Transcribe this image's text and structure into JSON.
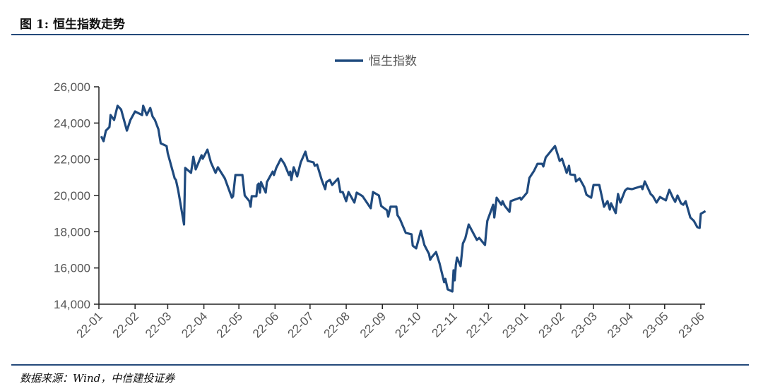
{
  "header": {
    "figure_title": "图 1: 恒生指数走势"
  },
  "footer": {
    "source": "数据来源：Wind，中信建投证券"
  },
  "colors": {
    "series": "#1f4a7e",
    "rule": "#24497a",
    "axis": "#222222"
  },
  "chart_data": {
    "type": "line",
    "title": "",
    "xlabel": "",
    "ylabel": "",
    "ylim": [
      14000,
      26000
    ],
    "yticks": [
      14000,
      16000,
      18000,
      20000,
      22000,
      24000,
      26000
    ],
    "ytick_labels": [
      "14,000",
      "16,000",
      "18,000",
      "20,000",
      "22,000",
      "24,000",
      "26,000"
    ],
    "xlim": [
      "2022-01-01",
      "2023-06-05"
    ],
    "xticks": [
      "2022-01-01",
      "2022-02-01",
      "2022-03-01",
      "2022-04-01",
      "2022-05-01",
      "2022-06-01",
      "2022-07-01",
      "2022-08-01",
      "2022-09-01",
      "2022-10-01",
      "2022-11-01",
      "2022-12-01",
      "2023-01-01",
      "2023-02-01",
      "2023-03-01",
      "2023-04-01",
      "2023-05-01",
      "2023-06-01"
    ],
    "xtick_labels": [
      "22-01",
      "22-02",
      "22-03",
      "22-04",
      "22-05",
      "22-06",
      "22-07",
      "22-08",
      "22-09",
      "22-10",
      "22-11",
      "22-12",
      "23-01",
      "23-02",
      "23-03",
      "23-04",
      "23-05",
      "23-06"
    ],
    "grid": false,
    "legend": {
      "placement": "top-center",
      "entries": [
        "恒生指数"
      ]
    },
    "series": [
      {
        "name": "恒生指数",
        "points": [
          [
            "2022-01-03",
            23270
          ],
          [
            "2022-01-05",
            23000
          ],
          [
            "2022-01-07",
            23580
          ],
          [
            "2022-01-10",
            23780
          ],
          [
            "2022-01-11",
            24440
          ],
          [
            "2022-01-14",
            24170
          ],
          [
            "2022-01-17",
            24950
          ],
          [
            "2022-01-20",
            24750
          ],
          [
            "2022-01-25",
            23580
          ],
          [
            "2022-01-28",
            24170
          ],
          [
            "2022-02-01",
            24640
          ],
          [
            "2022-02-07",
            24440
          ],
          [
            "2022-02-08",
            24950
          ],
          [
            "2022-02-11",
            24440
          ],
          [
            "2022-02-14",
            24830
          ],
          [
            "2022-02-16",
            24360
          ],
          [
            "2022-02-18",
            24170
          ],
          [
            "2022-02-21",
            23660
          ],
          [
            "2022-02-23",
            22880
          ],
          [
            "2022-02-28",
            22730
          ],
          [
            "2022-03-01",
            22340
          ],
          [
            "2022-03-07",
            20940
          ],
          [
            "2022-03-08",
            20860
          ],
          [
            "2022-03-10",
            20270
          ],
          [
            "2022-03-15",
            18400
          ],
          [
            "2022-03-16",
            21520
          ],
          [
            "2022-03-21",
            21250
          ],
          [
            "2022-03-23",
            22140
          ],
          [
            "2022-03-25",
            21440
          ],
          [
            "2022-03-30",
            22220
          ],
          [
            "2022-03-31",
            22030
          ],
          [
            "2022-04-04",
            22530
          ],
          [
            "2022-04-07",
            21830
          ],
          [
            "2022-04-11",
            21250
          ],
          [
            "2022-04-13",
            21560
          ],
          [
            "2022-04-19",
            20940
          ],
          [
            "2022-04-25",
            19880
          ],
          [
            "2022-04-26",
            19960
          ],
          [
            "2022-04-28",
            21130
          ],
          [
            "2022-05-04",
            21130
          ],
          [
            "2022-05-06",
            20000
          ],
          [
            "2022-05-10",
            19690
          ],
          [
            "2022-05-11",
            19380
          ],
          [
            "2022-05-12",
            19960
          ],
          [
            "2022-05-16",
            19960
          ],
          [
            "2022-05-17",
            20580
          ],
          [
            "2022-05-18",
            20660
          ],
          [
            "2022-05-19",
            20160
          ],
          [
            "2022-05-20",
            20740
          ],
          [
            "2022-05-24",
            20160
          ],
          [
            "2022-05-25",
            20740
          ],
          [
            "2022-05-30",
            21320
          ],
          [
            "2022-05-31",
            21130
          ],
          [
            "2022-06-02",
            21520
          ],
          [
            "2022-06-06",
            22030
          ],
          [
            "2022-06-09",
            21750
          ],
          [
            "2022-06-13",
            21130
          ],
          [
            "2022-06-14",
            21320
          ],
          [
            "2022-06-15",
            20860
          ],
          [
            "2022-06-17",
            21560
          ],
          [
            "2022-06-20",
            21050
          ],
          [
            "2022-06-23",
            21830
          ],
          [
            "2022-06-27",
            22420
          ],
          [
            "2022-06-29",
            21910
          ],
          [
            "2022-07-04",
            21830
          ],
          [
            "2022-07-05",
            21640
          ],
          [
            "2022-07-07",
            21710
          ],
          [
            "2022-07-11",
            20860
          ],
          [
            "2022-07-14",
            20350
          ],
          [
            "2022-07-15",
            20740
          ],
          [
            "2022-07-18",
            20860
          ],
          [
            "2022-07-20",
            20580
          ],
          [
            "2022-07-25",
            20940
          ],
          [
            "2022-07-27",
            20190
          ],
          [
            "2022-07-29",
            20190
          ],
          [
            "2022-08-01",
            19690
          ],
          [
            "2022-08-03",
            20190
          ],
          [
            "2022-08-08",
            19610
          ],
          [
            "2022-08-10",
            20160
          ],
          [
            "2022-08-15",
            19960
          ],
          [
            "2022-08-17",
            19770
          ],
          [
            "2022-08-22",
            19300
          ],
          [
            "2022-08-24",
            20190
          ],
          [
            "2022-08-29",
            20000
          ],
          [
            "2022-08-31",
            19420
          ],
          [
            "2022-09-05",
            19180
          ],
          [
            "2022-09-06",
            18830
          ],
          [
            "2022-09-08",
            19380
          ],
          [
            "2022-09-13",
            19380
          ],
          [
            "2022-09-14",
            18910
          ],
          [
            "2022-09-16",
            18710
          ],
          [
            "2022-09-21",
            17940
          ],
          [
            "2022-09-26",
            17860
          ],
          [
            "2022-09-27",
            17230
          ],
          [
            "2022-09-30",
            17080
          ],
          [
            "2022-10-04",
            18050
          ],
          [
            "2022-10-07",
            17270
          ],
          [
            "2022-10-11",
            16770
          ],
          [
            "2022-10-12",
            16450
          ],
          [
            "2022-10-13",
            16570
          ],
          [
            "2022-10-17",
            16880
          ],
          [
            "2022-10-20",
            16260
          ],
          [
            "2022-10-24",
            15210
          ],
          [
            "2022-10-25",
            15400
          ],
          [
            "2022-10-27",
            14820
          ],
          [
            "2022-10-31",
            14700
          ],
          [
            "2022-11-01",
            15870
          ],
          [
            "2022-11-02",
            15320
          ],
          [
            "2022-11-03",
            16180
          ],
          [
            "2022-11-04",
            16570
          ],
          [
            "2022-11-07",
            16100
          ],
          [
            "2022-11-09",
            17350
          ],
          [
            "2022-11-11",
            17620
          ],
          [
            "2022-11-14",
            18400
          ],
          [
            "2022-11-21",
            17550
          ],
          [
            "2022-11-23",
            17660
          ],
          [
            "2022-11-28",
            17270
          ],
          [
            "2022-11-29",
            18010
          ],
          [
            "2022-11-30",
            18600
          ],
          [
            "2022-12-05",
            19490
          ],
          [
            "2022-12-06",
            18790
          ],
          [
            "2022-12-08",
            19880
          ],
          [
            "2022-12-12",
            19490
          ],
          [
            "2022-12-13",
            19690
          ],
          [
            "2022-12-15",
            19420
          ],
          [
            "2022-12-19",
            19100
          ],
          [
            "2022-12-20",
            19690
          ],
          [
            "2022-12-28",
            19880
          ],
          [
            "2022-12-29",
            19770
          ],
          [
            "2023-01-03",
            20160
          ],
          [
            "2023-01-05",
            20970
          ],
          [
            "2023-01-09",
            21360
          ],
          [
            "2023-01-12",
            21750
          ],
          [
            "2023-01-16",
            21750
          ],
          [
            "2023-01-17",
            21600
          ],
          [
            "2023-01-19",
            22100
          ],
          [
            "2023-01-27",
            22730
          ],
          [
            "2023-01-31",
            21910
          ],
          [
            "2023-02-02",
            22030
          ],
          [
            "2023-02-06",
            21250
          ],
          [
            "2023-02-08",
            21640
          ],
          [
            "2023-02-09",
            21170
          ],
          [
            "2023-02-13",
            21130
          ],
          [
            "2023-02-14",
            20780
          ],
          [
            "2023-02-17",
            20940
          ],
          [
            "2023-02-21",
            20470
          ],
          [
            "2023-02-23",
            20040
          ],
          [
            "2023-02-27",
            19880
          ],
          [
            "2023-03-01",
            20580
          ],
          [
            "2023-03-06",
            20580
          ],
          [
            "2023-03-10",
            19380
          ],
          [
            "2023-03-13",
            19690
          ],
          [
            "2023-03-15",
            19220
          ],
          [
            "2023-03-16",
            19570
          ],
          [
            "2023-03-20",
            19030
          ],
          [
            "2023-03-22",
            20080
          ],
          [
            "2023-03-24",
            19610
          ],
          [
            "2023-03-28",
            20270
          ],
          [
            "2023-03-30",
            20390
          ],
          [
            "2023-04-03",
            20350
          ],
          [
            "2023-04-11",
            20510
          ],
          [
            "2023-04-12",
            20350
          ],
          [
            "2023-04-14",
            20780
          ],
          [
            "2023-04-19",
            20080
          ],
          [
            "2023-04-21",
            19960
          ],
          [
            "2023-04-24",
            19610
          ],
          [
            "2023-04-27",
            19920
          ],
          [
            "2023-05-02",
            19730
          ],
          [
            "2023-05-05",
            20310
          ],
          [
            "2023-05-08",
            19880
          ],
          [
            "2023-05-10",
            19650
          ],
          [
            "2023-05-12",
            20000
          ],
          [
            "2023-05-15",
            19570
          ],
          [
            "2023-05-17",
            19490
          ],
          [
            "2023-05-19",
            19690
          ],
          [
            "2023-05-23",
            18790
          ],
          [
            "2023-05-26",
            18600
          ],
          [
            "2023-05-29",
            18250
          ],
          [
            "2023-05-31",
            18210
          ],
          [
            "2023-06-01",
            18990
          ],
          [
            "2023-06-05",
            19140
          ]
        ]
      }
    ]
  }
}
